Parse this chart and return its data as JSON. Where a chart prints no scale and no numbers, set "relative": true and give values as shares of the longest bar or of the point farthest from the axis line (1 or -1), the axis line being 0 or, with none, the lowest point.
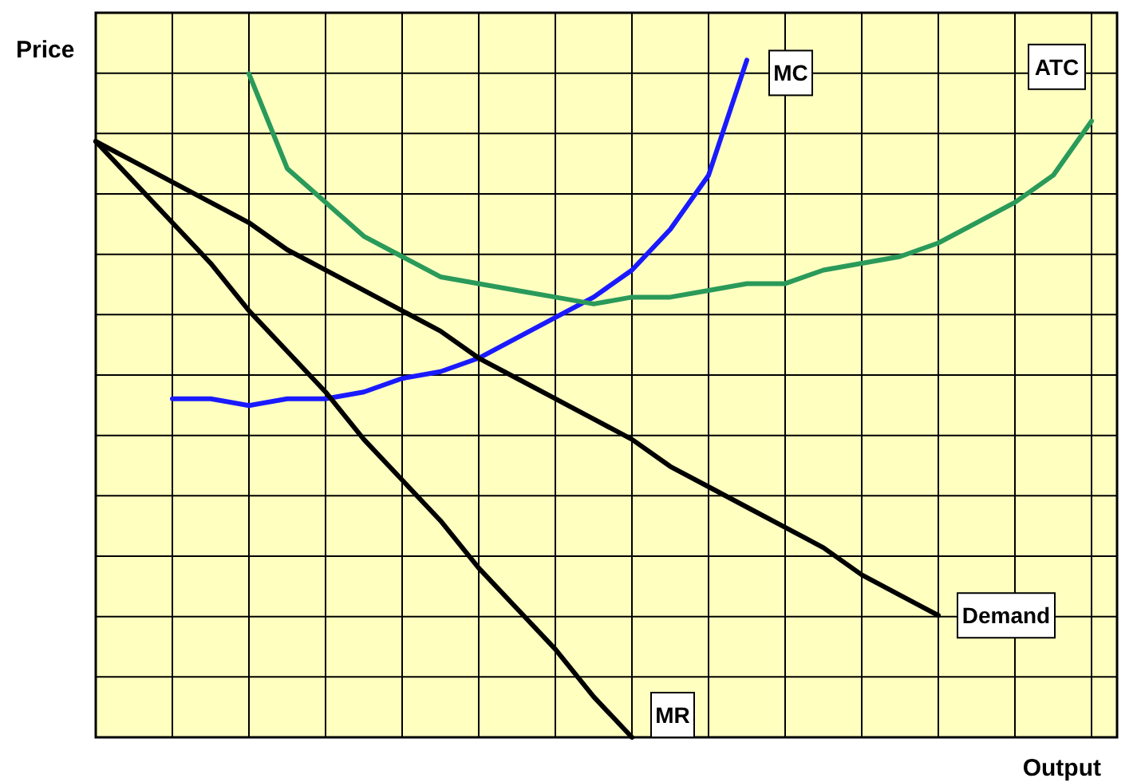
{
  "chart_data": {
    "type": "line",
    "xlabel": "Output",
    "ylabel": "Price",
    "relative": true,
    "categories": [
      null,
      null,
      null,
      null,
      null,
      null,
      null,
      null,
      null,
      null,
      null,
      null,
      null,
      null,
      null,
      null,
      null,
      null,
      null,
      null,
      null,
      null,
      null,
      null,
      null,
      null,
      null
    ],
    "grid": true,
    "legend": false,
    "marker": "none",
    "line_style": "solid",
    "series": [
      {
        "name": "MC",
        "color": "#1a1aff",
        "values": [
          null,
          null,
          0.5,
          0.5,
          0.49,
          0.5,
          0.5,
          0.51,
          0.53,
          0.54,
          0.56,
          0.59,
          0.62,
          0.65,
          0.69,
          0.75,
          0.83,
          1,
          null,
          null,
          null,
          null,
          null,
          null,
          null,
          null,
          null
        ]
      },
      {
        "name": "ATC",
        "color": "#2a9a5a",
        "values": [
          null,
          null,
          null,
          null,
          0.98,
          0.84,
          0.79,
          0.74,
          0.71,
          0.68,
          0.67,
          0.66,
          0.65,
          0.64,
          0.65,
          0.65,
          0.66,
          0.67,
          0.67,
          0.69,
          0.7,
          0.71,
          0.73,
          0.76,
          0.79,
          0.83,
          0.91
        ]
      },
      {
        "name": "Demand",
        "color": "#000000",
        "values": [
          0.88,
          0.85,
          0.82,
          0.79,
          0.76,
          0.72,
          0.69,
          0.66,
          0.63,
          0.6,
          0.56,
          0.53,
          0.5,
          0.47,
          0.44,
          0.4,
          0.37,
          0.34,
          0.31,
          0.28,
          0.24,
          0.21,
          0.18,
          null,
          null,
          null,
          null
        ]
      },
      {
        "name": "MR",
        "color": "#000000",
        "values": [
          0.88,
          0.82,
          0.76,
          0.7,
          0.63,
          0.57,
          0.51,
          0.44,
          0.38,
          0.32,
          0.25,
          0.19,
          0.13,
          0.06,
          0,
          null,
          null,
          null,
          null,
          null,
          null,
          null,
          null,
          null,
          null,
          null,
          null
        ]
      }
    ]
  }
}
